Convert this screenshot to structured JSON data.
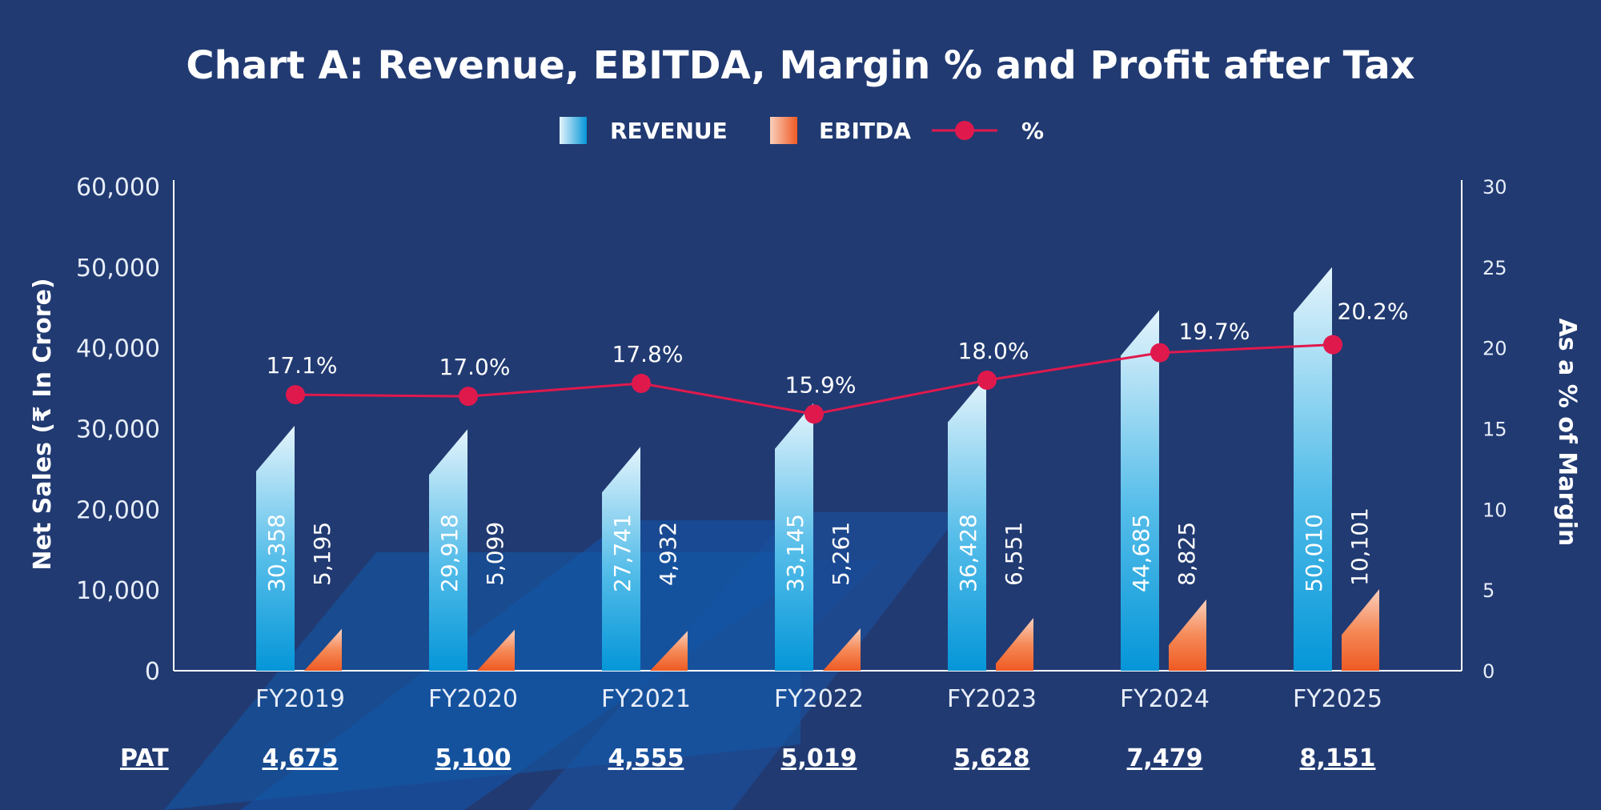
{
  "chart_data": {
    "type": "bar",
    "title": "Chart A: Revenue, EBITDA, Margin % and Profit after Tax",
    "ylabel": "Net Sales (₹ In Crore)",
    "y2label": "As a % of Margin",
    "ylim": [
      0,
      60000
    ],
    "y2lim": [
      0,
      30
    ],
    "yticks": [
      "60,000",
      "50,000",
      "40,000",
      "30,000",
      "20,000",
      "10,000",
      "0"
    ],
    "y2ticks": [
      "30",
      "25",
      "20",
      "15",
      "10",
      "5",
      "0"
    ],
    "categories": [
      "FY2019",
      "FY2020",
      "FY2021",
      "FY2022",
      "FY2023",
      "FY2024",
      "FY2025"
    ],
    "legend": {
      "placement": "top",
      "items": [
        "REVENUE",
        "EBITDA",
        "%"
      ]
    },
    "series": [
      {
        "name": "REVENUE",
        "type": "bar",
        "values": [
          30358,
          29918,
          27741,
          33145,
          36428,
          44685,
          50010
        ],
        "labels": [
          "30,358",
          "29,918",
          "27,741",
          "33,145",
          "36,428",
          "44,685",
          "50,010"
        ]
      },
      {
        "name": "EBITDA",
        "type": "bar",
        "values": [
          5195,
          5099,
          4932,
          5261,
          6551,
          8825,
          10101
        ],
        "labels": [
          "5,195",
          "5,099",
          "4,932",
          "5,261",
          "6,551",
          "8,825",
          "10,101"
        ]
      },
      {
        "name": "%",
        "type": "line",
        "axis": "right",
        "values": [
          17.1,
          17.0,
          17.8,
          15.9,
          18.0,
          19.7,
          20.2
        ],
        "labels": [
          "17.1%",
          "17.0%",
          "17.8%",
          "15.9%",
          "18.0%",
          "19.7%",
          "20.2%"
        ]
      }
    ],
    "pat": {
      "label": "PAT",
      "values": [
        "4,675",
        "5,100",
        "4,555",
        "5,019",
        "5,628",
        "7,479",
        "8,151"
      ]
    },
    "grid": false,
    "colors": {
      "background": "#213a72",
      "revenue": "#1ea7e3",
      "ebitda": "#f26a2e",
      "line": "#e0194d"
    }
  }
}
